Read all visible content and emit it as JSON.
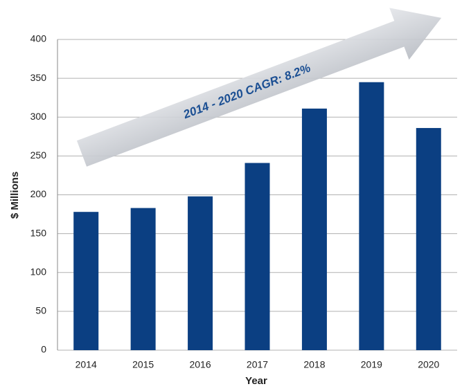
{
  "chart_data": {
    "type": "bar",
    "annotation": "2014 - 2020 CAGR: 8.2%",
    "x_label": "Year",
    "y_label": "$ Millions",
    "categories": [
      "2014",
      "2015",
      "2016",
      "2017",
      "2018",
      "2019",
      "2020"
    ],
    "values": [
      178,
      183,
      198,
      241,
      311,
      345,
      286
    ],
    "color": "#0b3f82",
    "ylim": [
      0,
      400
    ],
    "yticks": [
      0,
      50,
      100,
      150,
      200,
      250,
      300,
      350,
      400
    ],
    "grid": true
  }
}
